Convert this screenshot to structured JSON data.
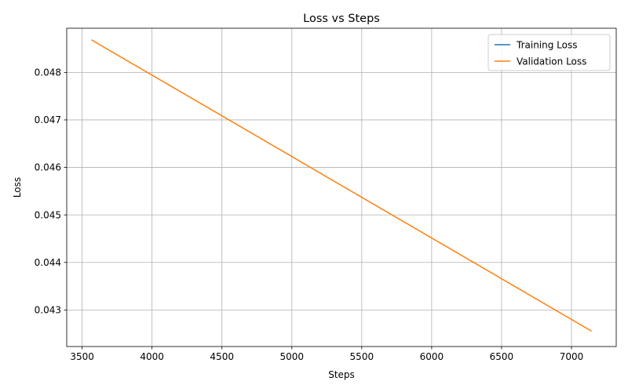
{
  "chart_data": {
    "type": "line",
    "title": "Loss vs Steps",
    "xlabel": "Steps",
    "ylabel": "Loss",
    "xlim": [
      3390,
      7320
    ],
    "ylim": [
      0.04223,
      0.04893
    ],
    "xticks": [
      3500,
      4000,
      4500,
      5000,
      5500,
      6000,
      6500,
      7000
    ],
    "yticks": [
      0.043,
      0.044,
      0.045,
      0.046,
      0.047,
      0.048
    ],
    "xtick_labels": [
      "3500",
      "4000",
      "4500",
      "5000",
      "5500",
      "6000",
      "6500",
      "7000"
    ],
    "ytick_labels": [
      "0.043",
      "0.044",
      "0.045",
      "0.046",
      "0.047",
      "0.048"
    ],
    "grid": true,
    "legend_position": "top-right",
    "series": [
      {
        "name": "Training Loss",
        "color": "#1f77b4",
        "x": [],
        "y": []
      },
      {
        "name": "Validation Loss",
        "color": "#ff7f0e",
        "x": [
          3570,
          7140
        ],
        "y": [
          0.04868,
          0.04256
        ]
      }
    ]
  }
}
